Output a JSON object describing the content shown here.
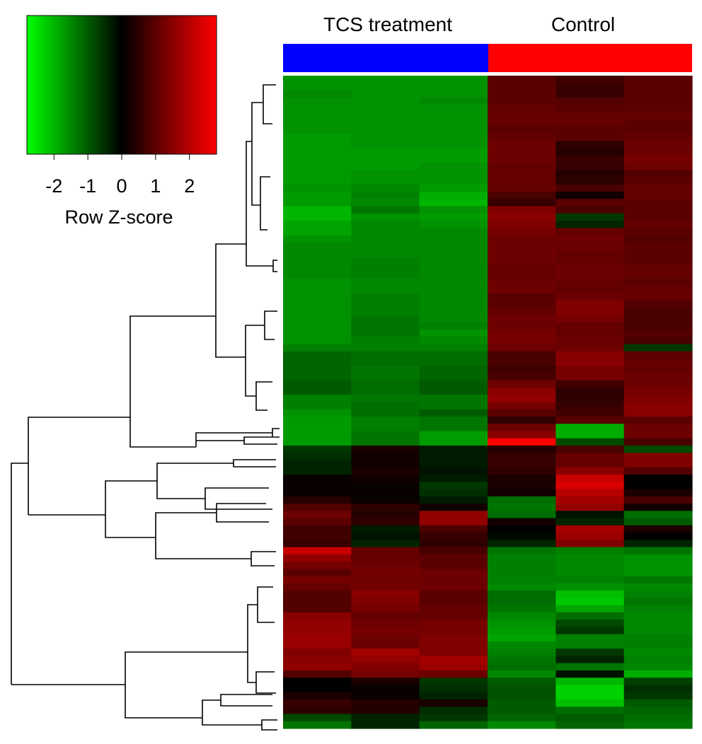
{
  "chart_data": {
    "type": "heatmap",
    "title": "",
    "groups": [
      {
        "label": "TCS treatment",
        "color": "#0000ff"
      },
      {
        "label": "Control",
        "color": "#ff0000"
      }
    ],
    "columns_per_group": 3,
    "color_key": {
      "label": "Row Z-score",
      "ticks": [
        "-2",
        "-1",
        "0",
        "1",
        "2"
      ],
      "range": [
        -2.8,
        2.8
      ],
      "low_color": "#00ff00",
      "mid_color": "#000000",
      "high_color": "#ff0000"
    },
    "rows": [
      {
        "v": [
          -1.6,
          -1.6,
          -1.6,
          1.0,
          0.7,
          1.0
        ]
      },
      {
        "v": [
          -1.6,
          -1.6,
          -1.6,
          1.0,
          0.6,
          1.0
        ]
      },
      {
        "v": [
          -1.5,
          -1.6,
          -1.6,
          1.0,
          0.6,
          1.0
        ]
      },
      {
        "v": [
          -1.6,
          -1.6,
          -1.5,
          1.0,
          0.9,
          1.0
        ]
      },
      {
        "v": [
          -1.6,
          -1.6,
          -1.6,
          1.1,
          1.0,
          1.0
        ]
      },
      {
        "v": [
          -1.6,
          -1.6,
          -1.6,
          1.1,
          1.1,
          1.1
        ]
      },
      {
        "v": [
          -1.6,
          -1.6,
          -1.6,
          1.1,
          1.1,
          1.0
        ]
      },
      {
        "v": [
          -1.6,
          -1.6,
          -1.6,
          1.0,
          1.0,
          1.0
        ]
      },
      {
        "v": [
          -1.7,
          -1.6,
          -1.6,
          1.1,
          1.0,
          1.1
        ]
      },
      {
        "v": [
          -1.7,
          -1.6,
          -1.6,
          1.2,
          0.5,
          1.2
        ]
      },
      {
        "v": [
          -1.7,
          -1.7,
          -1.7,
          1.2,
          0.4,
          1.2
        ]
      },
      {
        "v": [
          -1.7,
          -1.7,
          -1.7,
          1.2,
          0.6,
          1.3
        ]
      },
      {
        "v": [
          -1.7,
          -1.7,
          -1.6,
          1.1,
          0.6,
          1.2
        ]
      },
      {
        "v": [
          -1.7,
          -1.6,
          -1.6,
          1.1,
          0.4,
          0.9
        ]
      },
      {
        "v": [
          -1.7,
          -1.6,
          -1.6,
          1.1,
          0.5,
          1.0
        ]
      },
      {
        "v": [
          -1.6,
          -1.5,
          -1.7,
          1.1,
          0.8,
          1.1
        ]
      },
      {
        "v": [
          -1.7,
          -1.4,
          -1.9,
          0.8,
          0.2,
          1.1
        ]
      },
      {
        "v": [
          -1.7,
          -1.5,
          -2.0,
          0.6,
          1.0,
          1.0
        ]
      },
      {
        "v": [
          -2.0,
          -1.3,
          -1.6,
          1.4,
          0.8,
          1.0
        ]
      },
      {
        "v": [
          -2.0,
          -1.6,
          -1.7,
          1.5,
          -0.6,
          1.0
        ]
      },
      {
        "v": [
          -1.8,
          -1.5,
          -1.6,
          1.4,
          -0.4,
          1.1
        ]
      },
      {
        "v": [
          -1.8,
          -1.5,
          -1.5,
          1.3,
          1.1,
          1.0
        ]
      },
      {
        "v": [
          -1.6,
          -1.5,
          -1.5,
          1.2,
          1.2,
          0.9
        ]
      },
      {
        "v": [
          -1.5,
          -1.5,
          -1.5,
          1.2,
          1.2,
          1.0
        ]
      },
      {
        "v": [
          -1.5,
          -1.5,
          -1.5,
          1.2,
          1.1,
          1.0
        ]
      },
      {
        "v": [
          -1.5,
          -1.4,
          -1.5,
          1.2,
          1.1,
          1.0
        ]
      },
      {
        "v": [
          -1.5,
          -1.4,
          -1.5,
          1.1,
          1.2,
          1.1
        ]
      },
      {
        "v": [
          -1.5,
          -1.4,
          -1.5,
          1.1,
          1.2,
          1.1
        ]
      },
      {
        "v": [
          -1.6,
          -1.5,
          -1.5,
          1.2,
          1.1,
          1.0
        ]
      },
      {
        "v": [
          -1.6,
          -1.5,
          -1.5,
          1.2,
          1.1,
          1.1
        ]
      },
      {
        "v": [
          -1.6,
          -1.4,
          -1.5,
          1.0,
          1.2,
          1.1
        ]
      },
      {
        "v": [
          -1.6,
          -1.4,
          -1.5,
          1.0,
          1.4,
          0.9
        ]
      },
      {
        "v": [
          -1.6,
          -1.4,
          -1.5,
          1.1,
          1.4,
          0.8
        ]
      },
      {
        "v": [
          -1.6,
          -1.3,
          -1.5,
          1.2,
          1.3,
          0.8
        ]
      },
      {
        "v": [
          -1.6,
          -1.3,
          -1.4,
          1.2,
          1.1,
          0.8
        ]
      },
      {
        "v": [
          -1.6,
          -1.3,
          -1.6,
          1.3,
          1.1,
          0.9
        ]
      },
      {
        "v": [
          -1.6,
          -1.4,
          -1.5,
          1.3,
          1.2,
          0.8
        ]
      },
      {
        "v": [
          -1.4,
          -1.4,
          -1.4,
          1.2,
          1.2,
          -0.6
        ]
      },
      {
        "v": [
          -1.1,
          -1.2,
          -1.2,
          0.8,
          1.5,
          1.0
        ]
      },
      {
        "v": [
          -1.1,
          -1.2,
          -1.2,
          0.8,
          1.5,
          1.1
        ]
      },
      {
        "v": [
          -1.1,
          -1.3,
          -1.1,
          0.7,
          1.3,
          1.1
        ]
      },
      {
        "v": [
          -1.1,
          -1.3,
          -1.1,
          0.8,
          1.3,
          1.2
        ]
      },
      {
        "v": [
          -1.0,
          -1.2,
          -1.0,
          1.2,
          0.7,
          1.2
        ]
      },
      {
        "v": [
          -1.0,
          -1.2,
          -1.0,
          1.5,
          0.5,
          1.3
        ]
      },
      {
        "v": [
          -1.4,
          -1.3,
          -1.3,
          1.6,
          0.5,
          1.4
        ]
      },
      {
        "v": [
          -1.4,
          -1.2,
          -1.3,
          1.3,
          0.6,
          1.5
        ]
      },
      {
        "v": [
          -1.6,
          -1.2,
          -1.0,
          1.0,
          0.7,
          1.5
        ]
      },
      {
        "v": [
          -1.7,
          -1.4,
          -1.3,
          0.5,
          1.0,
          1.0
        ]
      },
      {
        "v": [
          -1.7,
          -1.4,
          -1.3,
          1.2,
          -1.9,
          1.2
        ]
      },
      {
        "v": [
          -1.7,
          -1.3,
          -1.7,
          1.5,
          -1.9,
          1.2
        ]
      },
      {
        "v": [
          -1.7,
          -1.3,
          -1.7,
          2.8,
          -0.8,
          0.8
        ]
      },
      {
        "v": [
          -0.6,
          0.3,
          -0.3,
          0.4,
          0.8,
          -0.8
        ]
      },
      {
        "v": [
          -0.5,
          0.2,
          -0.3,
          0.6,
          1.1,
          1.4
        ]
      },
      {
        "v": [
          -0.4,
          0.2,
          -0.3,
          0.6,
          1.1,
          1.4
        ]
      },
      {
        "v": [
          -0.4,
          0.3,
          -0.2,
          0.5,
          1.5,
          0.9
        ]
      },
      {
        "v": [
          0.1,
          0.2,
          -0.3,
          0.3,
          2.2,
          0.0
        ]
      },
      {
        "v": [
          0.1,
          0.1,
          -0.6,
          0.3,
          2.4,
          0.0
        ]
      },
      {
        "v": [
          0.1,
          0.1,
          -0.5,
          0.2,
          2.0,
          0.3
        ]
      },
      {
        "v": [
          0.4,
          0.1,
          -0.3,
          -1.2,
          1.8,
          0.8
        ]
      },
      {
        "v": [
          0.9,
          0.5,
          0.2,
          -1.3,
          1.6,
          0.2
        ]
      },
      {
        "v": [
          1.2,
          0.4,
          1.6,
          -1.2,
          -0.2,
          -1.2
        ]
      },
      {
        "v": [
          1.0,
          0.5,
          1.6,
          0.2,
          -0.4,
          -1.0
        ]
      },
      {
        "v": [
          0.7,
          -0.3,
          0.8,
          0.0,
          1.8,
          0.3
        ]
      },
      {
        "v": [
          0.7,
          -0.2,
          0.6,
          -0.1,
          1.7,
          0.0
        ]
      },
      {
        "v": [
          0.6,
          -0.4,
          0.5,
          -0.4,
          1.4,
          -0.4
        ]
      },
      {
        "v": [
          2.2,
          1.1,
          0.8,
          -1.3,
          -1.4,
          -1.3
        ]
      },
      {
        "v": [
          1.6,
          1.1,
          1.0,
          -1.4,
          -1.5,
          -1.6
        ]
      },
      {
        "v": [
          1.3,
          1.2,
          1.0,
          -1.4,
          -1.5,
          -1.6
        ]
      },
      {
        "v": [
          1.0,
          1.3,
          1.2,
          -1.4,
          -1.5,
          -1.6
        ]
      },
      {
        "v": [
          1.3,
          1.2,
          1.2,
          -1.4,
          -1.4,
          -1.3
        ]
      },
      {
        "v": [
          1.1,
          1.3,
          1.2,
          -1.5,
          -1.6,
          -1.5
        ]
      },
      {
        "v": [
          0.9,
          1.5,
          1.0,
          -1.2,
          -2.1,
          -1.4
        ]
      },
      {
        "v": [
          0.9,
          1.4,
          1.0,
          -1.2,
          -2.2,
          -1.3
        ]
      },
      {
        "v": [
          0.9,
          1.3,
          1.1,
          -1.3,
          -1.8,
          -1.4
        ]
      },
      {
        "v": [
          1.5,
          1.1,
          1.1,
          -1.5,
          -1.2,
          -1.5
        ]
      },
      {
        "v": [
          1.6,
          1.2,
          1.3,
          -1.6,
          -0.8,
          -1.5
        ]
      },
      {
        "v": [
          1.6,
          1.3,
          1.3,
          -1.7,
          -0.6,
          -1.5
        ]
      },
      {
        "v": [
          1.7,
          1.2,
          1.4,
          -1.8,
          -1.4,
          -1.4
        ]
      },
      {
        "v": [
          1.7,
          1.2,
          1.4,
          -1.5,
          -1.4,
          -1.4
        ]
      },
      {
        "v": [
          1.4,
          1.8,
          1.4,
          -1.4,
          -0.6,
          -1.5
        ]
      },
      {
        "v": [
          1.5,
          1.6,
          1.8,
          -1.3,
          -0.4,
          -1.4
        ]
      },
      {
        "v": [
          1.6,
          1.4,
          1.7,
          -1.2,
          -1.3,
          -1.5
        ]
      },
      {
        "v": [
          0.9,
          1.3,
          1.2,
          -1.5,
          -0.2,
          -1.9
        ]
      },
      {
        "v": [
          0.0,
          0.3,
          -0.6,
          -1.0,
          -2.0,
          -0.7
        ]
      },
      {
        "v": [
          0.0,
          0.1,
          -0.5,
          -0.9,
          -2.3,
          -0.5
        ]
      },
      {
        "v": [
          0.3,
          0.1,
          -0.4,
          -0.9,
          -2.3,
          -0.6
        ]
      },
      {
        "v": [
          0.6,
          0.4,
          0.3,
          -1.0,
          -2.1,
          -1.0
        ]
      },
      {
        "v": [
          0.5,
          0.4,
          -0.5,
          -1.0,
          -1.2,
          -1.1
        ]
      },
      {
        "v": [
          -0.8,
          -0.4,
          -0.6,
          -1.1,
          -1.0,
          -1.2
        ]
      },
      {
        "v": [
          -1.3,
          -0.4,
          -1.1,
          -1.5,
          -1.1,
          -1.3
        ]
      }
    ]
  }
}
